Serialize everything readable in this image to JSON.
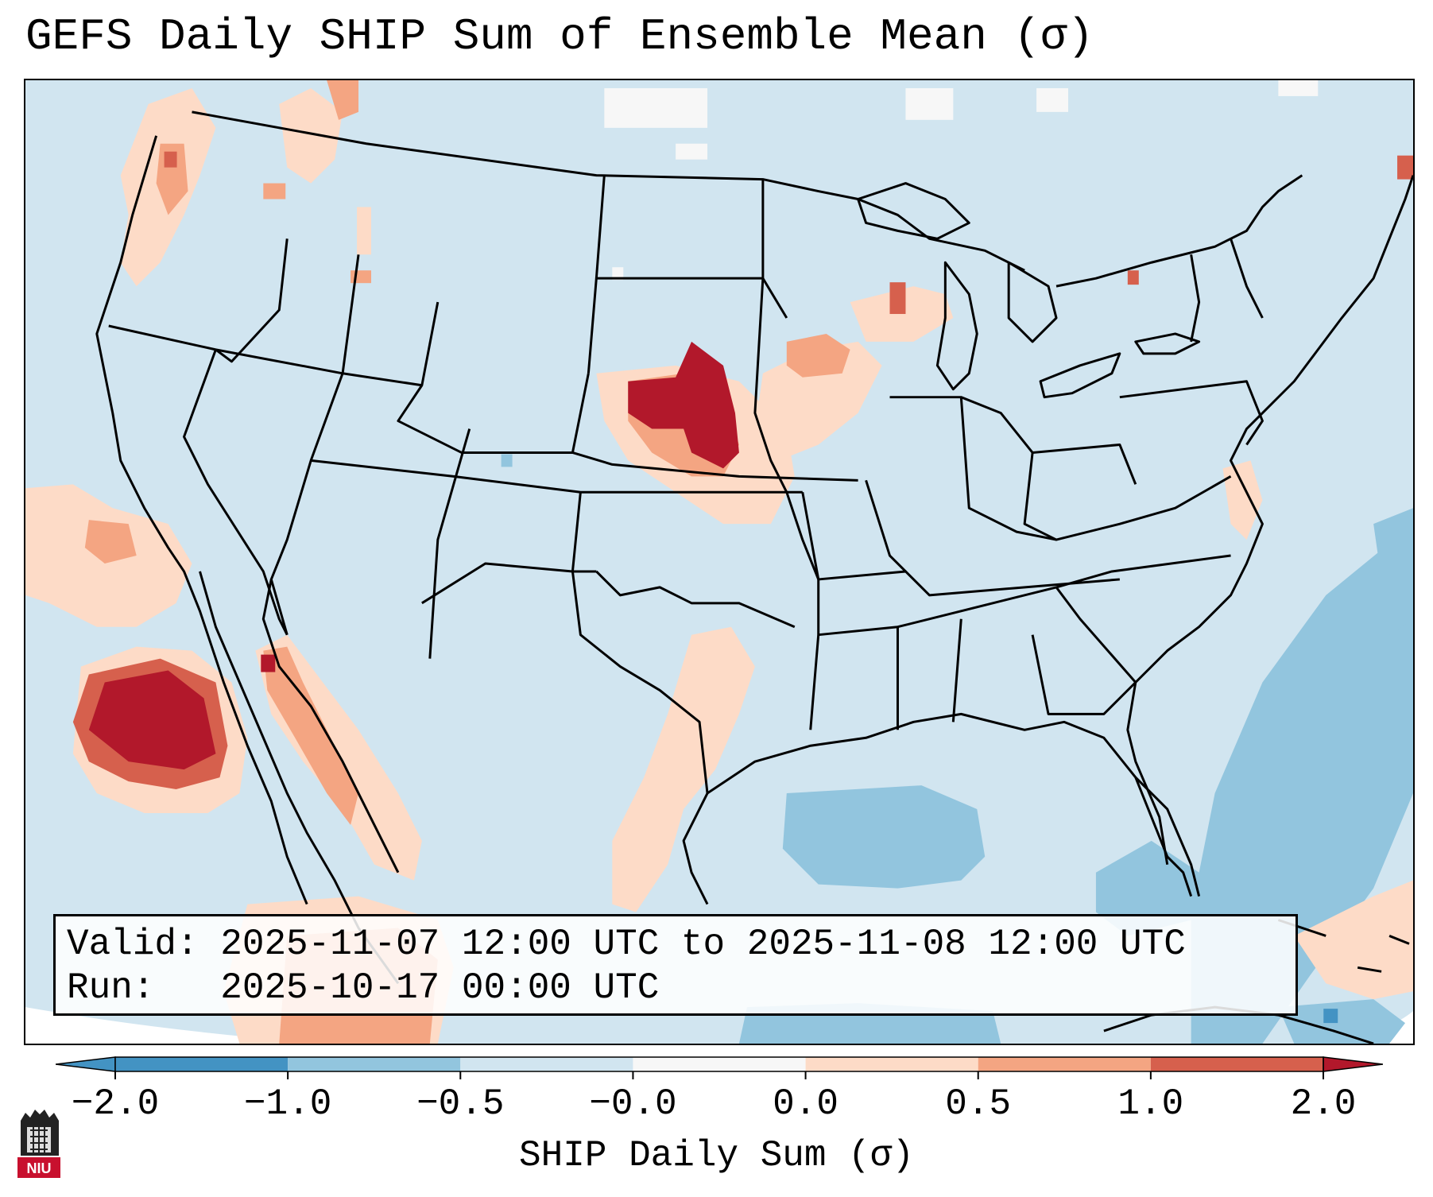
{
  "title": "GEFS Daily SHIP Sum of Ensemble Mean (σ)",
  "info": {
    "valid_line": "Valid: 2025-11-07 12:00 UTC to 2025-11-08 12:00 UTC",
    "run_line": "Run:   2025-10-17 00:00 UTC"
  },
  "colorbar": {
    "label": "SHIP Daily Sum (σ)",
    "ticks": [
      "−2.0",
      "−1.0",
      "−0.5",
      "−0.0",
      "0.0",
      "0.5",
      "1.0",
      "2.0"
    ],
    "colors": [
      "#4393c3",
      "#92c5de",
      "#d1e5f0",
      "#f7f7f7",
      "#fddbc7",
      "#f4a582",
      "#d6604d",
      "#b2182b"
    ]
  },
  "logo": {
    "text": "NIU",
    "icon": "university-logo-icon"
  },
  "map": {
    "region": "Contiguous United States",
    "ocean_color": "#d1e5f0",
    "notable_anomalies": [
      {
        "area": "Nebraska / Kansas",
        "category": "> 1.0"
      },
      {
        "area": "Eastern Pacific off Baja California",
        "category": "> 1.0"
      },
      {
        "area": "Gulf of Mexico / western Atlantic",
        "category": "-1.0 to -0.5"
      }
    ]
  }
}
